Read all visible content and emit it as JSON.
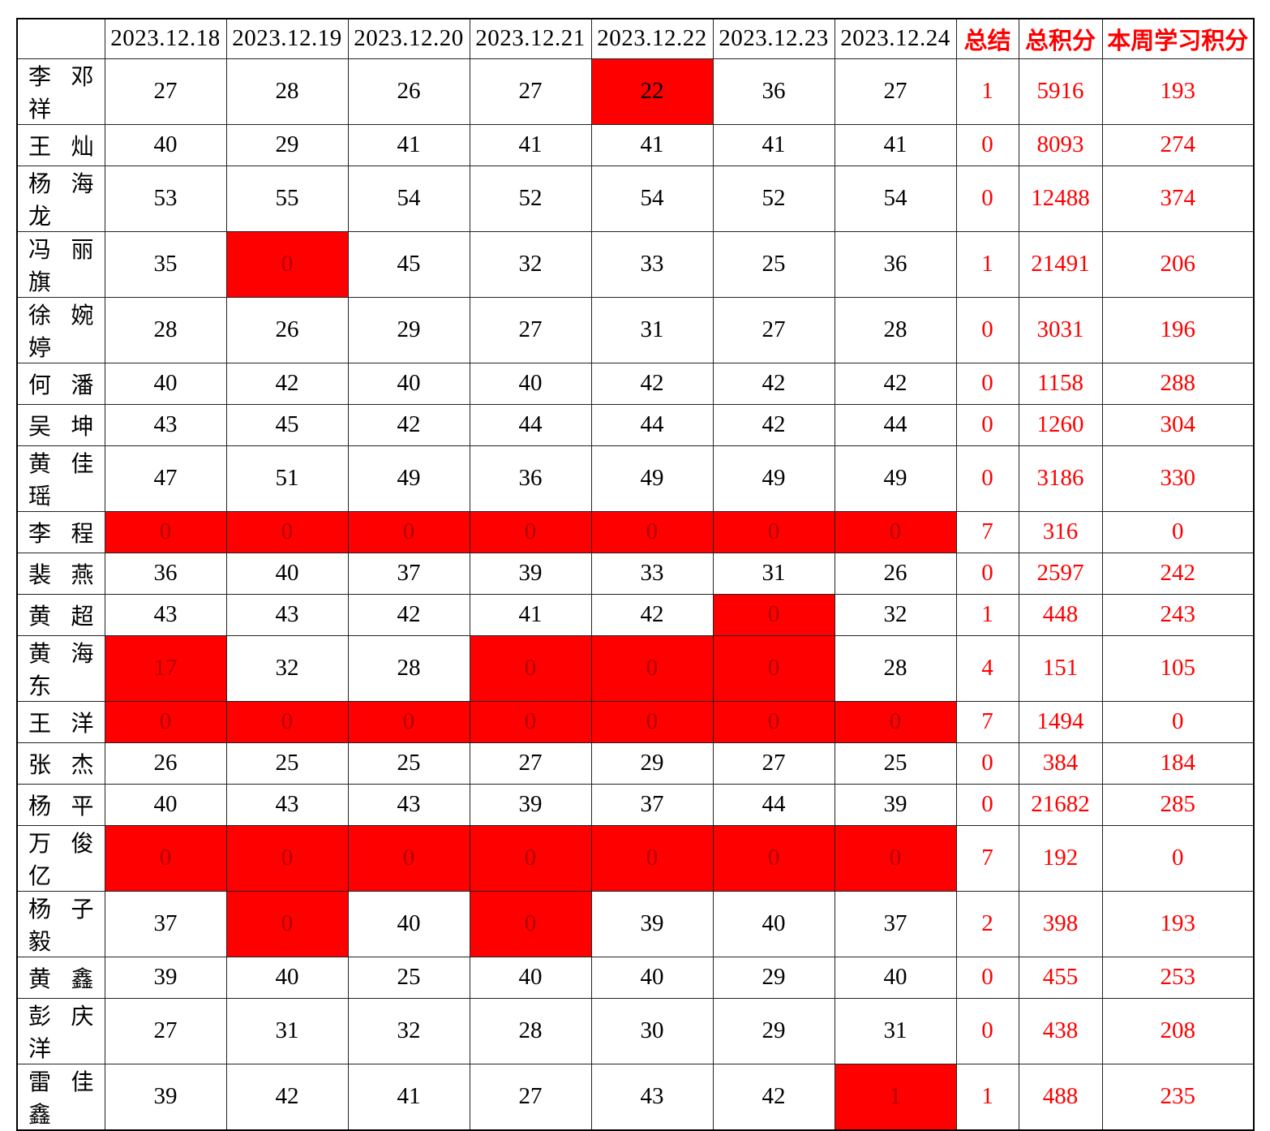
{
  "colors": {
    "highlight_bg": "#FF0000",
    "highlight_fg_dark": "#B00000",
    "accent_red": "#FF0000",
    "grid": "#222222",
    "text_black": "#000000",
    "page_bg": "#FFFFFF"
  },
  "table": {
    "corner_label": "",
    "date_headers": [
      "2023.12.18",
      "2023.12.19",
      "2023.12.20",
      "2023.12.21",
      "2023.12.22",
      "2023.12.23",
      "2023.12.24"
    ],
    "summary_headers": [
      "总结",
      "总积分",
      "本周学习积分"
    ],
    "rows": [
      {
        "name": "李邓祥",
        "daily": [
          "27",
          "28",
          "26",
          "27",
          {
            "v": "22",
            "hl": true,
            "fg": "black"
          },
          "36",
          "27"
        ],
        "summary": "1",
        "total": "5916",
        "week": "193"
      },
      {
        "name": "王灿",
        "daily": [
          "40",
          "29",
          "41",
          "41",
          "41",
          "41",
          "41"
        ],
        "summary": "0",
        "total": "8093",
        "week": "274"
      },
      {
        "name": "杨海龙",
        "daily": [
          "53",
          "55",
          "54",
          "52",
          "54",
          "52",
          "54"
        ],
        "summary": "0",
        "total": "12488",
        "week": "374"
      },
      {
        "name": "冯丽旗",
        "daily": [
          "35",
          {
            "v": "0",
            "hl": true
          },
          "45",
          "32",
          "33",
          "25",
          "36"
        ],
        "summary": "1",
        "total": "21491",
        "week": "206"
      },
      {
        "name": "徐婉婷",
        "daily": [
          "28",
          "26",
          "29",
          "27",
          "31",
          "27",
          "28"
        ],
        "summary": "0",
        "total": "3031",
        "week": "196"
      },
      {
        "name": "何潘",
        "daily": [
          "40",
          "42",
          "40",
          "40",
          "42",
          "42",
          "42"
        ],
        "summary": "0",
        "total": "1158",
        "week": "288"
      },
      {
        "name": "吴坤",
        "daily": [
          "43",
          "45",
          "42",
          "44",
          "44",
          "42",
          "44"
        ],
        "summary": "0",
        "total": "1260",
        "week": "304"
      },
      {
        "name": "黄佳瑶",
        "daily": [
          "47",
          "51",
          "49",
          "36",
          "49",
          "49",
          "49"
        ],
        "summary": "0",
        "total": "3186",
        "week": "330"
      },
      {
        "name": "李程",
        "daily": [
          {
            "v": "0",
            "hl": true
          },
          {
            "v": "0",
            "hl": true
          },
          {
            "v": "0",
            "hl": true
          },
          {
            "v": "0",
            "hl": true
          },
          {
            "v": "0",
            "hl": true
          },
          {
            "v": "0",
            "hl": true
          },
          {
            "v": "0",
            "hl": true
          }
        ],
        "summary": "7",
        "total": "316",
        "week": "0"
      },
      {
        "name": "裴燕",
        "daily": [
          "36",
          "40",
          "37",
          "39",
          "33",
          "31",
          "26"
        ],
        "summary": "0",
        "total": "2597",
        "week": "242"
      },
      {
        "name": "黄超",
        "daily": [
          "43",
          "43",
          "42",
          "41",
          "42",
          {
            "v": "0",
            "hl": true
          },
          "32"
        ],
        "summary": "1",
        "total": "448",
        "week": "243"
      },
      {
        "name": "黄海东",
        "daily": [
          {
            "v": "17",
            "hl": true
          },
          "32",
          "28",
          {
            "v": "0",
            "hl": true
          },
          {
            "v": "0",
            "hl": true
          },
          {
            "v": "0",
            "hl": true
          },
          "28"
        ],
        "summary": "4",
        "total": "151",
        "week": "105"
      },
      {
        "name": "王洋",
        "daily": [
          {
            "v": "0",
            "hl": true
          },
          {
            "v": "0",
            "hl": true
          },
          {
            "v": "0",
            "hl": true
          },
          {
            "v": "0",
            "hl": true
          },
          {
            "v": "0",
            "hl": true
          },
          {
            "v": "0",
            "hl": true
          },
          {
            "v": "0",
            "hl": true
          }
        ],
        "summary": "7",
        "total": "1494",
        "week": "0"
      },
      {
        "name": "张杰",
        "daily": [
          "26",
          "25",
          "25",
          "27",
          "29",
          "27",
          "25"
        ],
        "summary": "0",
        "total": "384",
        "week": "184"
      },
      {
        "name": "杨平",
        "daily": [
          "40",
          "43",
          "43",
          "39",
          "37",
          "44",
          "39"
        ],
        "summary": "0",
        "total": "21682",
        "week": "285"
      },
      {
        "name": "万俊亿",
        "daily": [
          {
            "v": "0",
            "hl": true
          },
          {
            "v": "0",
            "hl": true
          },
          {
            "v": "0",
            "hl": true
          },
          {
            "v": "0",
            "hl": true
          },
          {
            "v": "0",
            "hl": true
          },
          {
            "v": "0",
            "hl": true
          },
          {
            "v": "0",
            "hl": true
          }
        ],
        "summary": "7",
        "total": "192",
        "week": "0"
      },
      {
        "name": "杨子毅",
        "daily": [
          "37",
          {
            "v": "0",
            "hl": true
          },
          "40",
          {
            "v": "0",
            "hl": true
          },
          "39",
          "40",
          "37"
        ],
        "summary": "2",
        "total": "398",
        "week": "193"
      },
      {
        "name": "黄鑫",
        "daily": [
          "39",
          "40",
          "25",
          "40",
          "40",
          "29",
          "40"
        ],
        "summary": "0",
        "total": "455",
        "week": "253"
      },
      {
        "name": "彭庆洋",
        "daily": [
          "27",
          "31",
          "32",
          "28",
          "30",
          "29",
          "31"
        ],
        "summary": "0",
        "total": "438",
        "week": "208"
      },
      {
        "name": "雷佳鑫",
        "daily": [
          "39",
          "42",
          "41",
          "27",
          "43",
          "42",
          {
            "v": "1",
            "hl": true
          }
        ],
        "summary": "1",
        "total": "488",
        "week": "235"
      }
    ]
  }
}
